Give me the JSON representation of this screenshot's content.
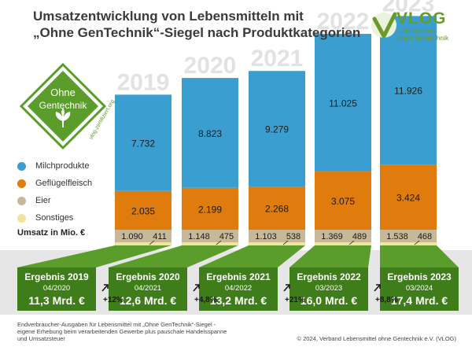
{
  "header": {
    "title_line1": "Umsatzentwicklung von Lebensmitteln mit",
    "title_line2": "„Ohne GenTechnik“-Siegel nach Produktkategorien",
    "logo_text": "VLOG",
    "logo_sub1": "Lebensmittel",
    "logo_sub2": "ohne Gentechnik"
  },
  "badge": {
    "line1": "Ohne",
    "line2": "Gentechnik",
    "url": "vlog-zertifiziert.org"
  },
  "legend": {
    "items": [
      {
        "label": "Milchprodukte",
        "color": "#3a9fd0"
      },
      {
        "label": "Geflügelfleisch",
        "color": "#e07b0d"
      },
      {
        "label": "Eier",
        "color": "#c8b89a"
      },
      {
        "label": "Sonstiges",
        "color": "#f4e2a0"
      }
    ],
    "unit_label": "Umsatz in Mio. €"
  },
  "chart_data": {
    "type": "bar",
    "stacked": true,
    "categories": [
      "2019",
      "2020",
      "2021",
      "2022",
      "2023"
    ],
    "series": [
      {
        "name": "Sonstiges",
        "values": [
          411,
          475,
          538,
          489,
          468
        ],
        "color": "#f4e2a0"
      },
      {
        "name": "Eier",
        "values": [
          1090,
          1148,
          1103,
          1369,
          1538
        ],
        "color": "#c8b89a"
      },
      {
        "name": "Geflügelfleisch",
        "values": [
          2035,
          2199,
          2268,
          3075,
          3424
        ],
        "color": "#e07b0d"
      },
      {
        "name": "Milchprodukte",
        "values": [
          7732,
          8823,
          9279,
          11025,
          11926
        ],
        "color": "#3a9fd0"
      }
    ],
    "value_labels": {
      "Milchprodukte": [
        "7.732",
        "8.823",
        "9.279",
        "11.025",
        "11.926"
      ],
      "Geflügelfleisch": [
        "2.035",
        "2.199",
        "2.268",
        "3.075",
        "3.424"
      ],
      "Eier": [
        "1.090",
        "1.148",
        "1.103",
        "1.369",
        "1.538"
      ],
      "Sonstiges": [
        "411",
        "475",
        "538",
        "489",
        "468"
      ]
    },
    "results": [
      {
        "title": "Ergebnis 2019",
        "period": "04/2020",
        "total": "11,3 Mrd. €"
      },
      {
        "title": "Ergebnis 2020",
        "period": "04/2021",
        "total": "12,6 Mrd. €"
      },
      {
        "title": "Ergebnis 2021",
        "period": "04/2022",
        "total": "13,2 Mrd. €"
      },
      {
        "title": "Ergebnis 2022",
        "period": "03/2023",
        "total": "16,0 Mrd. €"
      },
      {
        "title": "Ergebnis 2023",
        "period": "03/2024",
        "total": "17,4 Mrd. €"
      }
    ],
    "growth": [
      "+12%",
      "+4,8%",
      "+21%",
      "+8,8%"
    ]
  },
  "footer": {
    "left_line1": "Endverbraucher-Ausgaben für Lebensmittel mit „Ohne GenTechnik“-Siegel -",
    "left_line2": "eigene Erhebung beim verarbeitenden Gewerbe plus pauschale Handelsspanne",
    "left_line3": "und Umsatzsteuer",
    "right": "© 2024, Verband Lebensmittel ohne Gentechnik e.V. (VLOG)"
  },
  "colors": {
    "green_dark": "#3f7d1a",
    "green": "#5a9d2a",
    "grey_band": "#e6e6e6",
    "year_text": "#e2e2e2"
  }
}
